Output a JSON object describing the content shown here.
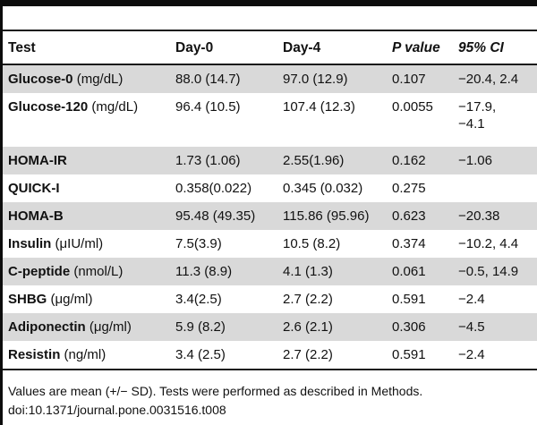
{
  "table": {
    "columns": [
      "Test",
      "Day-0",
      "Day-4",
      "P value",
      "95% CI"
    ],
    "rows": [
      {
        "test": "Glucose-0",
        "unit": "(mg/dL)",
        "day0": "88.0 (14.7)",
        "day4": "97.0 (12.9)",
        "p": "0.107",
        "ci": "−20.4, 2.4",
        "shaded": true
      },
      {
        "test": "Glucose-120",
        "unit": "(mg/dL)",
        "day0": "96.4 (10.5)",
        "day4": "107.4 (12.3)",
        "p": "0.0055",
        "ci": "−17.9,\n−4.1",
        "shaded": false
      },
      {
        "test": "HOMA-IR",
        "unit": "",
        "day0": "1.73 (1.06)",
        "day4": "2.55(1.96)",
        "p": "0.162",
        "ci": "−1.06",
        "shaded": true
      },
      {
        "test": "QUICK-I",
        "unit": "",
        "day0": "0.358(0.022)",
        "day4": "0.345 (0.032)",
        "p": "0.275",
        "ci": "",
        "shaded": false
      },
      {
        "test": "HOMA-B",
        "unit": "",
        "day0": "95.48 (49.35)",
        "day4": "115.86 (95.96)",
        "p": "0.623",
        "ci": "−20.38",
        "shaded": true
      },
      {
        "test": "Insulin",
        "unit": "(μIU/ml)",
        "day0": "7.5(3.9)",
        "day4": "10.5 (8.2)",
        "p": "0.374",
        "ci": "−10.2, 4.4",
        "shaded": false
      },
      {
        "test": "C-peptide",
        "unit": "(nmol/L)",
        "day0": "11.3 (8.9)",
        "day4": "4.1 (1.3)",
        "p": "0.061",
        "ci": "−0.5, 14.9",
        "shaded": true
      },
      {
        "test": "SHBG",
        "unit": "(μg/ml)",
        "day0": "3.4(2.5)",
        "day4": "2.7 (2.2)",
        "p": "0.591",
        "ci": "−2.4",
        "shaded": false
      },
      {
        "test": "Adiponectin",
        "unit": "(μg/ml)",
        "day0": "5.9 (8.2)",
        "day4": "2.6 (2.1)",
        "p": "0.306",
        "ci": "−4.5",
        "shaded": true
      },
      {
        "test": "Resistin",
        "unit": "(ng/ml)",
        "day0": "3.4 (2.5)",
        "day4": "2.7 (2.2)",
        "p": "0.591",
        "ci": "−2.4",
        "shaded": false
      }
    ]
  },
  "footer": {
    "note": "Values are mean (+/− SD). Tests were performed as described in Methods.",
    "doi": "doi:10.1371/journal.pone.0031516.t008"
  },
  "colors": {
    "shaded_row": "#d9d9d9",
    "text": "#111111",
    "rule": "#1a1a1a"
  }
}
